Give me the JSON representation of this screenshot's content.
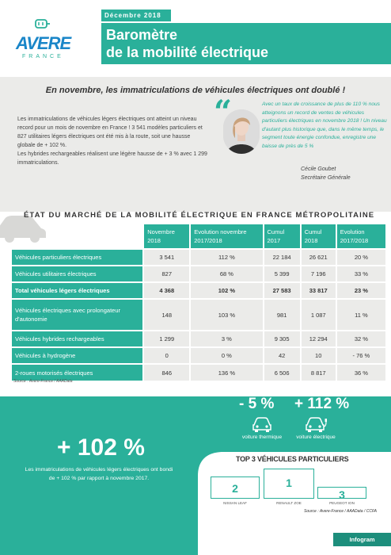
{
  "header": {
    "date": "Décembre 2018",
    "title_line1": "Baromètre",
    "title_line2": "de la mobilité électrique",
    "logo_brand": "AVERE",
    "logo_sub": "FRANCE"
  },
  "headline": "En novembre, les immatriculations de véhicules électriques ont doublé !",
  "intro": {
    "p1": "Les immatriculations de véhicules légers électriques ont atteint un niveau record pour un mois de novembre en France ! 3 541 modèles particuliers et 827 utilitaires légers électriques ont été mis à la route, soit une hausse globale de + 102 %.",
    "p2": "Les hybrides rechargeables réalisent une légère hausse de + 3 % avec 1 299 immatriculations."
  },
  "quote": {
    "text": "Avec un taux de croissance de plus de 110 % nous atteignons un record de ventes de véhicules particuliers électriques en novembre 2018 ! Un niveau d'autant plus historique que, dans le même temps, le segment toute énergie confondue, enregistre une baisse de près de 5 %",
    "name": "Cécile Goubet",
    "role": "Secrétaire Générale"
  },
  "section_title": "ÉTAT DU MARCHÉ DE LA MOBILITÉ ÉLECTRIQUE EN FRANCE MÉTROPOLITAINE",
  "table": {
    "headers": [
      "Novembre 2018",
      "Evolution novembre 2017/2018",
      "Cumul 2017",
      "Cumul 2018",
      "Evolution 2017/2018"
    ],
    "rows": [
      {
        "label": "Véhicules particuliers électriques",
        "values": [
          "3 541",
          "112 %",
          "22 184",
          "26 621",
          "20 %"
        ]
      },
      {
        "label": "Véhicules utilitaires électriques",
        "values": [
          "827",
          "68 %",
          "5 399",
          "7 196",
          "33 %"
        ]
      },
      {
        "label": "Total véhicules légers électriques",
        "values": [
          "4 368",
          "102 %",
          "27 583",
          "33 817",
          "23 %"
        ]
      },
      {
        "label": "Véhicules électriques avec prolongateur d'autonomie",
        "values": [
          "148",
          "103 %",
          "981",
          "1 087",
          "11 %"
        ]
      },
      {
        "label": "Véhicules hybrides rechargeables",
        "values": [
          "1 299",
          "3 %",
          "9 305",
          "12 294",
          "32 %"
        ]
      },
      {
        "label": "Véhicules à hydrogène",
        "values": [
          "0",
          "0 %",
          "42",
          "10",
          "- 76 %"
        ]
      },
      {
        "label": "2-roues motorisés électriques",
        "values": [
          "846",
          "136 %",
          "6 506",
          "8 817",
          "36 %"
        ]
      }
    ],
    "source": "Source : Avere-France / AAAData"
  },
  "highlight": {
    "big_percent": "+ 102 %",
    "text": "Les immatriculations de véhicules légers électriques ont bondi de + 102 % par rapport à novembre 2017."
  },
  "comparison": {
    "thermal_pct": "- 5 %",
    "thermal_label": "voiture thermique",
    "electric_pct": "+ 112 %",
    "electric_label": "voiture électrique"
  },
  "top3": {
    "title": "TOP 3 VÉHICULES PARTICULIERS",
    "second_rank": "2",
    "second_name": "NISSAN LEAF",
    "first_rank": "1",
    "first_name": "RENAULT ZOE",
    "third_rank": "3",
    "third_name": "PEUGEOT ION",
    "source": "Source : Avere-France / AAAData / CCFA"
  },
  "footer_tag": "Infogram",
  "colors": {
    "accent": "#2ab09a",
    "gray": "#ebebe9",
    "logo_blue": "#1a86c8"
  },
  "icons": [
    "plug-icon",
    "quote-icon",
    "car-icon",
    "thermal-car-icon",
    "electric-car-icon"
  ]
}
